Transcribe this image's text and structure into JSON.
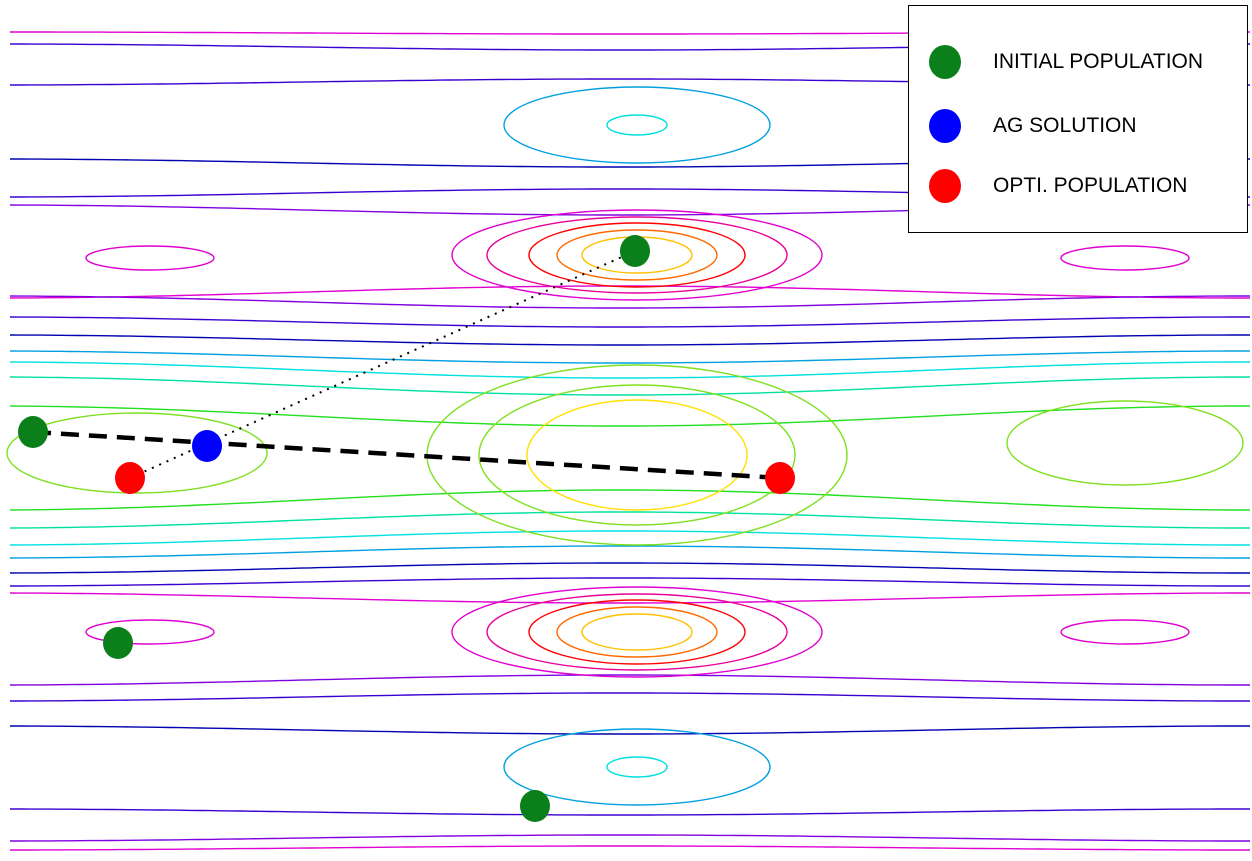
{
  "legend": {
    "items": [
      {
        "label": "INITIAL POPULATION",
        "color": "#0a7f1a"
      },
      {
        "label": "AG SOLUTION",
        "color": "#0000ff"
      },
      {
        "label": "OPTI. POPULATION",
        "color": "#ff0000"
      }
    ]
  },
  "colors": {
    "initial": "#0a7f1a",
    "ag": "#0000ff",
    "opti": "#ff0000",
    "contour_palette": [
      "#0000b0",
      "#3a00d0",
      "#8000e0",
      "#e000d0",
      "#e8009a",
      "#ff0000",
      "#ff6a00",
      "#ffc000",
      "#ffe000",
      "#7fe020",
      "#22e020",
      "#00e0a0",
      "#00e0e0",
      "#00a0e0",
      "#0070e0"
    ]
  },
  "points": {
    "initial": [
      {
        "id": "init-1"
      },
      {
        "id": "init-2"
      },
      {
        "id": "init-3"
      },
      {
        "id": "init-4"
      }
    ],
    "ag": [
      {
        "id": "ag-1"
      }
    ],
    "opti": [
      {
        "id": "opti-1"
      },
      {
        "id": "opti-2"
      }
    ]
  }
}
